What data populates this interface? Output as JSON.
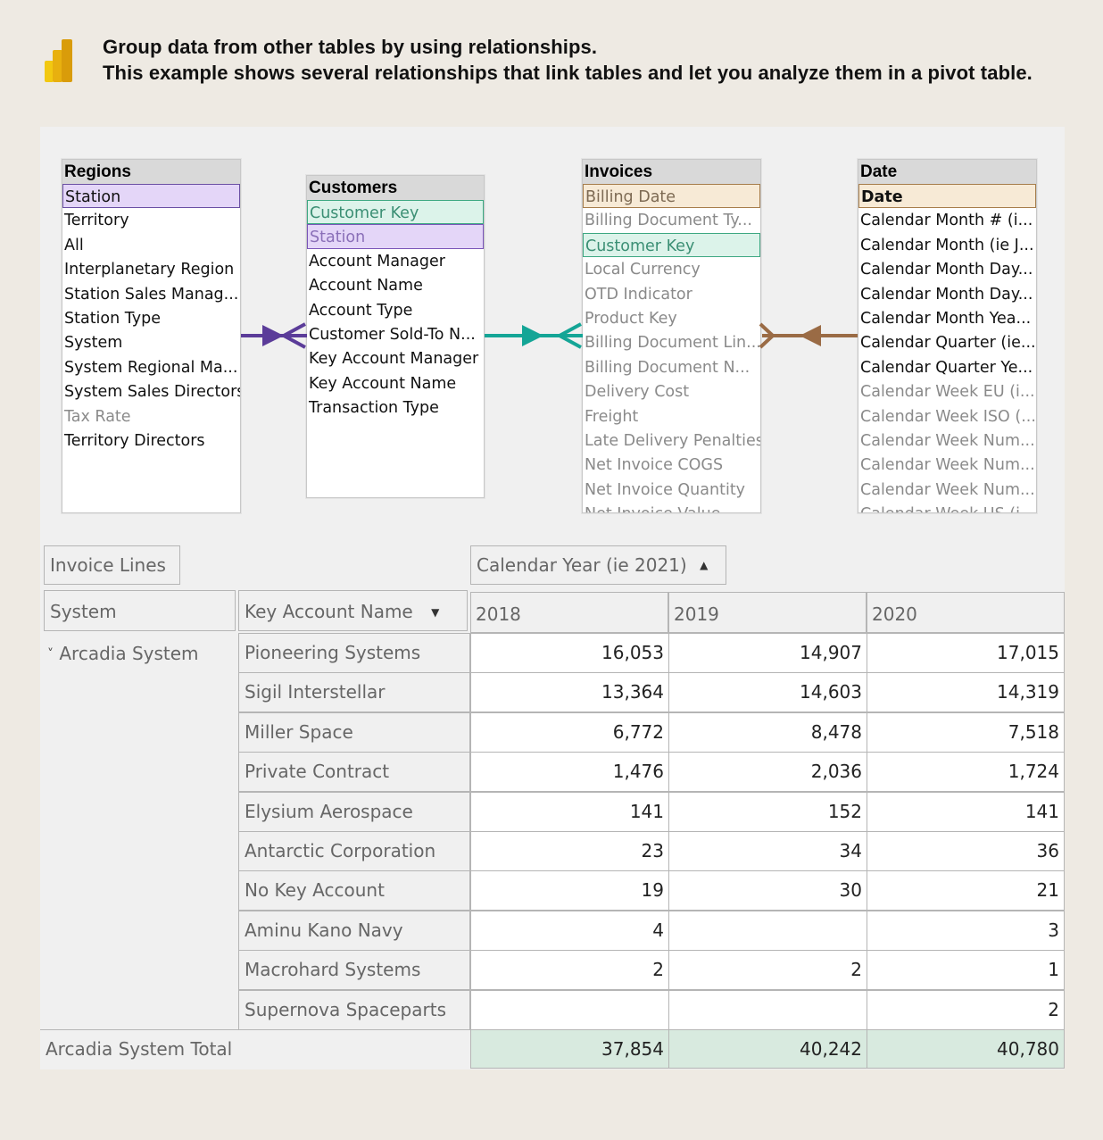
{
  "header": {
    "logo_icon": "power-bi-logo-icon",
    "line1": "Group data from other tables by using relationships.",
    "line2": "This example shows several relationships that link tables and let you analyze them in a pivot table."
  },
  "model": {
    "regions": {
      "title": "Regions",
      "rows": [
        "Station",
        "Territory",
        "All",
        "Interplanetary Region",
        "Station Sales Manag...",
        "Station Type",
        "System",
        "System Regional Ma...",
        "System Sales Directors",
        "Tax Rate",
        "Territory Directors"
      ]
    },
    "customers": {
      "title": "Customers",
      "rows": [
        "Customer Key",
        "Station",
        "Account Manager",
        "Account Name",
        "Account Type",
        "Customer Sold-To N...",
        "Key Account Manager",
        "Key Account Name",
        "Transaction Type"
      ]
    },
    "invoices": {
      "title": "Invoices",
      "rows": [
        "Billing Date",
        "Billing Document Ty...",
        "Customer Key",
        "Local Currency",
        "OTD Indicator",
        "Product Key",
        "Billing Document Lin...",
        "Billing Document N...",
        "Delivery Cost",
        "Freight",
        "Late Delivery Penalties",
        "Net Invoice COGS",
        "Net Invoice Quantity",
        "Net Invoice Value"
      ]
    },
    "date": {
      "title": "Date",
      "rows": [
        "Date",
        "Calendar Month # (i...",
        "Calendar Month (ie J...",
        "Calendar Month Day...",
        "Calendar Month Day...",
        "Calendar Month Yea...",
        "Calendar Quarter (ie...",
        "Calendar Quarter Ye...",
        "Calendar Week EU (i...",
        "Calendar Week ISO (...",
        "Calendar Week Num...",
        "Calendar Week Num...",
        "Calendar Week Num...",
        "Calendar Week US (i..."
      ]
    },
    "colors": {
      "purple": "#5b3c99",
      "teal": "#14a596",
      "brown": "#9a6b45"
    }
  },
  "pivot": {
    "values_label": "Invoice Lines",
    "column_field": "Calendar Year (ie 2021)",
    "column_sort_icon": "sort-ascending-icon",
    "row_field_1": "System",
    "row_field_2": "Key Account Name",
    "row_field_2_icon": "dropdown-arrow-icon",
    "years": [
      "2018",
      "2019",
      "2020"
    ],
    "group": "Arcadia System",
    "collapse_icon": "chevron-down-icon",
    "rows": [
      {
        "name": "Pioneering Systems",
        "v": [
          "16,053",
          "14,907",
          "17,015"
        ]
      },
      {
        "name": "Sigil Interstellar",
        "v": [
          "13,364",
          "14,603",
          "14,319"
        ]
      },
      {
        "name": "Miller Space",
        "v": [
          "6,772",
          "8,478",
          "7,518"
        ]
      },
      {
        "name": "Private Contract",
        "v": [
          "1,476",
          "2,036",
          "1,724"
        ]
      },
      {
        "name": "Elysium Aerospace",
        "v": [
          "141",
          "152",
          "141"
        ]
      },
      {
        "name": "Antarctic Corporation",
        "v": [
          "23",
          "34",
          "36"
        ]
      },
      {
        "name": "No Key Account",
        "v": [
          "19",
          "30",
          "21"
        ]
      },
      {
        "name": "Aminu Kano Navy",
        "v": [
          "4",
          "",
          "3"
        ]
      },
      {
        "name": "Macrohard Systems",
        "v": [
          "2",
          "2",
          "1"
        ]
      },
      {
        "name": "Supernova Spaceparts",
        "v": [
          "",
          "",
          "2"
        ]
      }
    ],
    "total_label": "Arcadia System Total",
    "totals": [
      "37,854",
      "40,242",
      "40,780"
    ]
  }
}
